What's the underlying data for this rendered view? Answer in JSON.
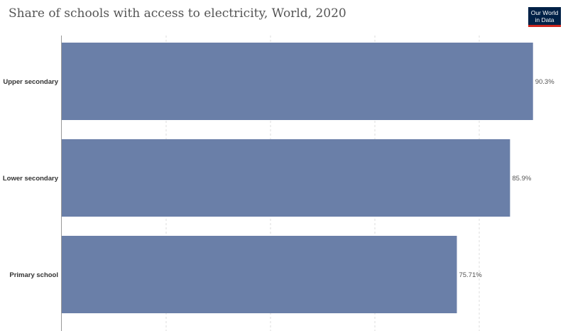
{
  "header": {
    "title": "Share of schools with access to electricity, World, 2020"
  },
  "logo": {
    "line1": "Our World",
    "line2": "in Data",
    "bg_color": "#002147",
    "accent_color": "#ce261e"
  },
  "chart_data": {
    "type": "bar",
    "orientation": "horizontal",
    "title": "Share of schools with access to electricity, World, 2020",
    "categories": [
      "Upper secondary",
      "Lower secondary",
      "Primary school"
    ],
    "values": [
      90.3,
      85.9,
      75.71
    ],
    "value_labels": [
      "90.3%",
      "85.9%",
      "75.71%"
    ],
    "unit": "%",
    "xlim": [
      0,
      100
    ],
    "grid": true,
    "bar_color": "#6a7fa8"
  }
}
